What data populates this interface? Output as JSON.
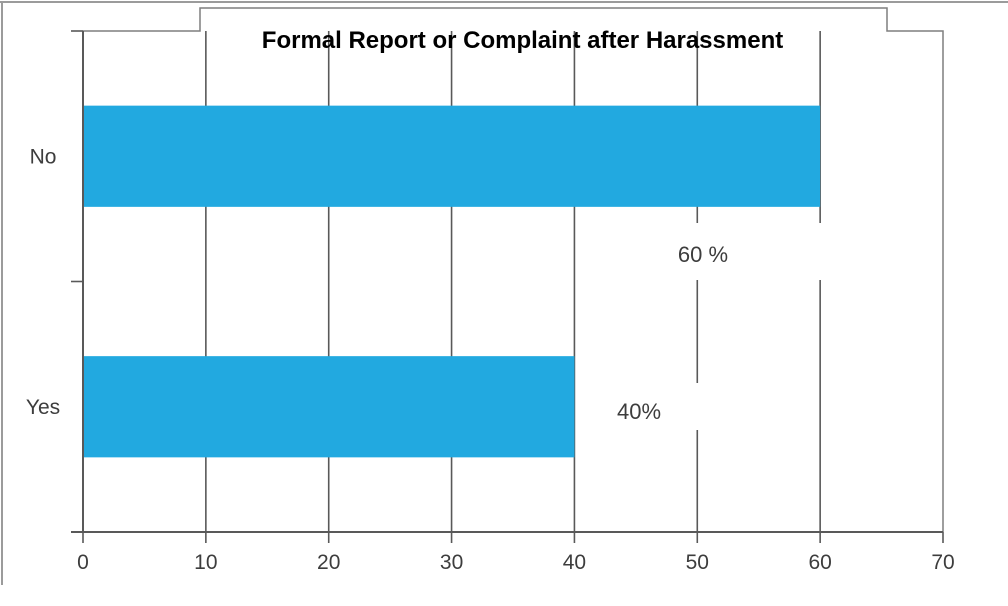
{
  "window": {
    "page_border_color": "#9b9b9b"
  },
  "chart_data": {
    "type": "bar",
    "orientation": "horizontal",
    "title": "Formal Report or Complaint after Harassment",
    "categories": [
      "No",
      "Yes"
    ],
    "values": [
      60,
      40
    ],
    "data_labels": [
      "60 %",
      "40%"
    ],
    "xlabel": "",
    "ylabel": "",
    "xlim": [
      0,
      70
    ],
    "xticks": [
      0,
      10,
      20,
      30,
      40,
      50,
      60,
      70
    ],
    "xtick_labels": [
      "0",
      "10",
      "20",
      "30",
      "40",
      "50",
      "60",
      "70"
    ],
    "grid": true,
    "legend": false,
    "colors": {
      "bar": "#22A9E0",
      "grid": "#595959",
      "axis": "#595959",
      "outline": "#7f7f7f",
      "text": "#3d3d3d",
      "title": "#000000",
      "label_box": "#ffffff"
    }
  }
}
